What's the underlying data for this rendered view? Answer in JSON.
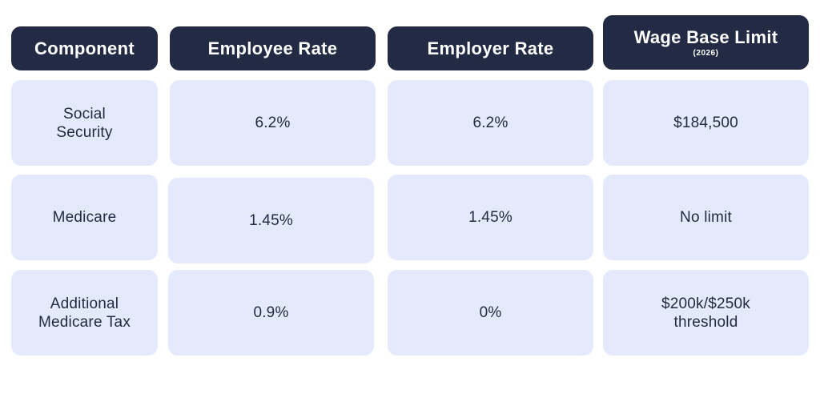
{
  "headers": {
    "component": "Component",
    "employee_rate": "Employee Rate",
    "employer_rate": "Employer Rate",
    "wage_base_limit": "Wage Base Limit",
    "wage_base_year": "(2026)"
  },
  "rows": [
    {
      "component_line1": "Social",
      "component_line2": "Security",
      "employee_rate": "6.2%",
      "employer_rate": "6.2%",
      "wage_base_line1": "$184,500",
      "wage_base_line2": ""
    },
    {
      "component_line1": "Medicare",
      "component_line2": "",
      "employee_rate": "1.45%",
      "employer_rate": "1.45%",
      "wage_base_line1": "No limit",
      "wage_base_line2": ""
    },
    {
      "component_line1": "Additional",
      "component_line2": "Medicare Tax",
      "employee_rate": "0.9%",
      "employer_rate": "0%",
      "wage_base_line1": "$200k/$250k",
      "wage_base_line2": "threshold"
    }
  ],
  "colors": {
    "header_bg": "#222b43",
    "cell_bg": "#e4eafb",
    "text": "#222b43"
  }
}
